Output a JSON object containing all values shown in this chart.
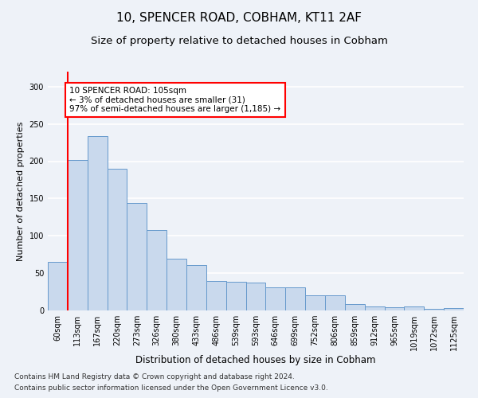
{
  "title1": "10, SPENCER ROAD, COBHAM, KT11 2AF",
  "title2": "Size of property relative to detached houses in Cobham",
  "xlabel": "Distribution of detached houses by size in Cobham",
  "ylabel": "Number of detached properties",
  "categories": [
    "60sqm",
    "113sqm",
    "167sqm",
    "220sqm",
    "273sqm",
    "326sqm",
    "380sqm",
    "433sqm",
    "486sqm",
    "539sqm",
    "593sqm",
    "646sqm",
    "699sqm",
    "752sqm",
    "806sqm",
    "859sqm",
    "912sqm",
    "965sqm",
    "1019sqm",
    "1072sqm",
    "1125sqm"
  ],
  "values": [
    65,
    202,
    234,
    190,
    144,
    108,
    69,
    61,
    40,
    38,
    37,
    31,
    31,
    20,
    20,
    9,
    5,
    4,
    5,
    2,
    3
  ],
  "bar_color": "#c9d9ed",
  "bar_edge_color": "#6699cc",
  "annotation_box_text": "10 SPENCER ROAD: 105sqm\n← 3% of detached houses are smaller (31)\n97% of semi-detached houses are larger (1,185) →",
  "annotation_box_color": "white",
  "annotation_box_edge_color": "red",
  "vline_color": "red",
  "vline_x": 0.5,
  "ylim": [
    0,
    320
  ],
  "yticks": [
    0,
    50,
    100,
    150,
    200,
    250,
    300
  ],
  "footer1": "Contains HM Land Registry data © Crown copyright and database right 2024.",
  "footer2": "Contains public sector information licensed under the Open Government Licence v3.0.",
  "background_color": "#eef2f8",
  "plot_bg_color": "#eef2f8",
  "grid_color": "white",
  "title1_fontsize": 11,
  "title2_fontsize": 9.5,
  "xlabel_fontsize": 8.5,
  "ylabel_fontsize": 8,
  "tick_fontsize": 7,
  "footer_fontsize": 6.5,
  "annot_fontsize": 7.5
}
